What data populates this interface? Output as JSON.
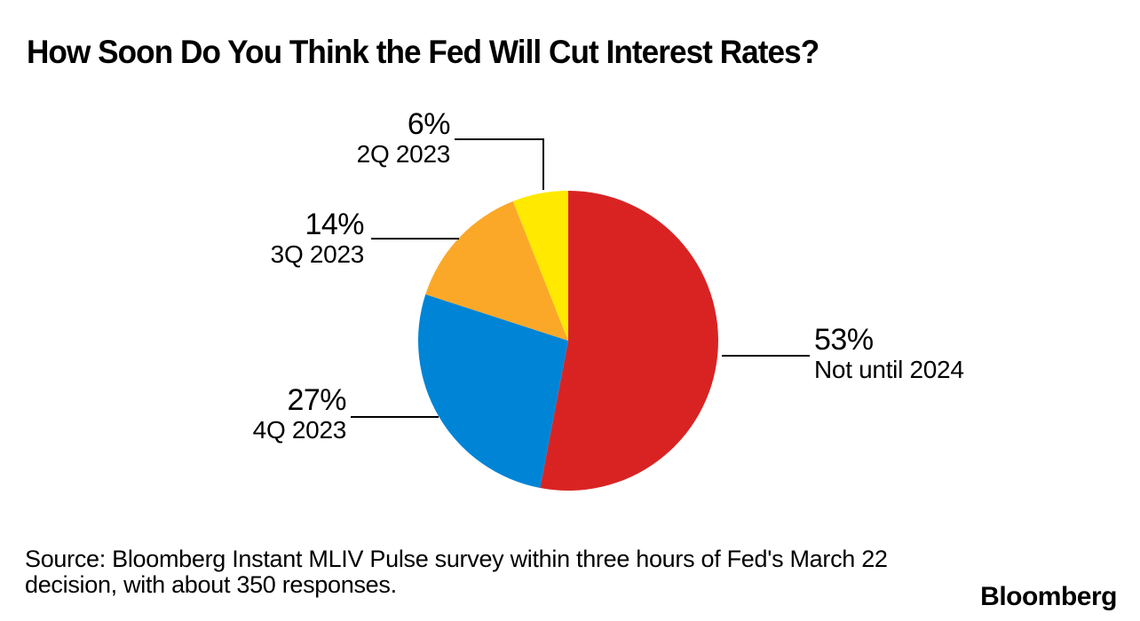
{
  "title": "How Soon Do You Think the Fed Will Cut Interest Rates?",
  "source": {
    "line1": "Source: Bloomberg Instant MLIV Pulse survey within three hours of Fed's March 22",
    "line2": "decision, with about 350 responses."
  },
  "branding": {
    "logo_text": "Bloomberg"
  },
  "chart_data": {
    "type": "pie",
    "title": "How Soon Do You Think the Fed Will Cut Interest Rates?",
    "start_angle": "12-oclock",
    "direction": "clockwise",
    "label_style": "external-callouts",
    "legend": "none",
    "units": "percent of respondents",
    "slices": [
      {
        "label": "Not until 2024",
        "value": 53,
        "pct_label": "53%",
        "color": "#d92323"
      },
      {
        "label": "4Q 2023",
        "value": 27,
        "pct_label": "27%",
        "color": "#0084d6"
      },
      {
        "label": "3Q 2023",
        "value": 14,
        "pct_label": "14%",
        "color": "#fba829"
      },
      {
        "label": "2Q 2023",
        "value": 6,
        "pct_label": "6%",
        "color": "#ffe900"
      }
    ]
  }
}
